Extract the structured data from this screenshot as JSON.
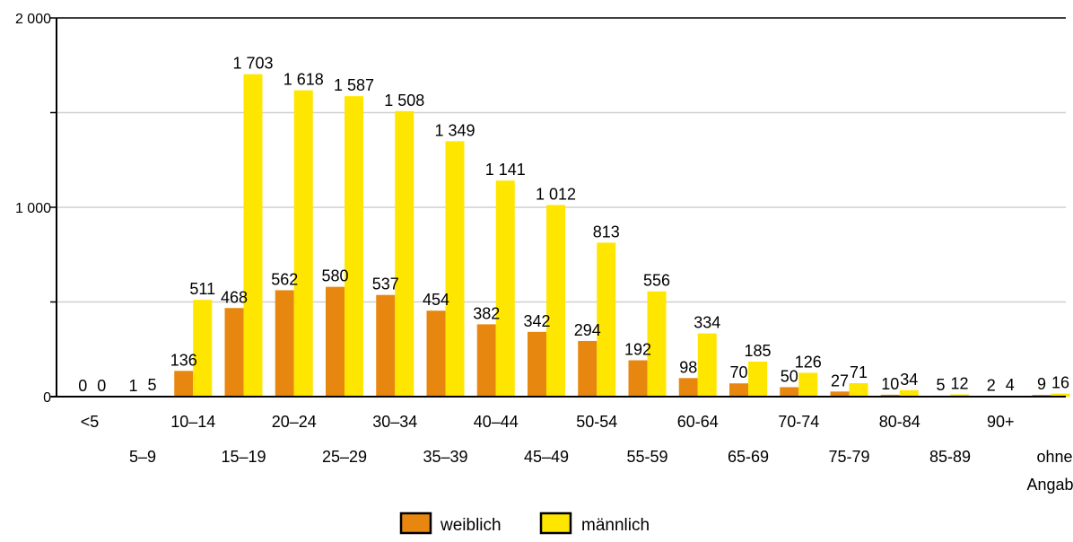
{
  "chart_data": {
    "type": "bar",
    "categories": [
      "<5",
      "5–9",
      "10–14",
      "15–19",
      "20–24",
      "25–29",
      "30–34",
      "35–39",
      "40–44",
      "45–49",
      "50-54",
      "55-59",
      "60-64",
      "65-69",
      "70-74",
      "75-79",
      "80-84",
      "85-89",
      "90+",
      "ohne Angabe"
    ],
    "category_display": [
      {
        "lines": [
          "<5"
        ],
        "row": 0
      },
      {
        "lines": [
          "5–9"
        ],
        "row": 1
      },
      {
        "lines": [
          "10–14"
        ],
        "row": 0
      },
      {
        "lines": [
          "15–19"
        ],
        "row": 1
      },
      {
        "lines": [
          "20–24"
        ],
        "row": 0
      },
      {
        "lines": [
          "25–29"
        ],
        "row": 1
      },
      {
        "lines": [
          "30–34"
        ],
        "row": 0
      },
      {
        "lines": [
          "35–39"
        ],
        "row": 1
      },
      {
        "lines": [
          "40–44"
        ],
        "row": 0
      },
      {
        "lines": [
          "45–49"
        ],
        "row": 1
      },
      {
        "lines": [
          "50-54"
        ],
        "row": 0
      },
      {
        "lines": [
          "55-59"
        ],
        "row": 1
      },
      {
        "lines": [
          "60-64"
        ],
        "row": 0
      },
      {
        "lines": [
          "65-69"
        ],
        "row": 1
      },
      {
        "lines": [
          "70-74"
        ],
        "row": 0
      },
      {
        "lines": [
          "75-79"
        ],
        "row": 1
      },
      {
        "lines": [
          "80-84"
        ],
        "row": 0
      },
      {
        "lines": [
          "85-89"
        ],
        "row": 1
      },
      {
        "lines": [
          "90+"
        ],
        "row": 0
      },
      {
        "lines": [
          "ohne",
          "Angabe"
        ],
        "row": 1
      }
    ],
    "series": [
      {
        "name": "weiblich",
        "color": "#E8870F",
        "values": [
          0,
          1,
          136,
          468,
          562,
          580,
          537,
          454,
          382,
          342,
          294,
          192,
          98,
          70,
          50,
          27,
          10,
          5,
          2,
          9
        ]
      },
      {
        "name": "männlich",
        "color": "#FFE600",
        "values": [
          0,
          5,
          511,
          1703,
          1618,
          1587,
          1508,
          1349,
          1141,
          1012,
          813,
          556,
          334,
          185,
          126,
          71,
          34,
          12,
          4,
          16
        ]
      }
    ],
    "data_labels": {
      "weiblich": [
        "0",
        "1",
        "136",
        "468",
        "562",
        "580",
        "537",
        "454",
        "382",
        "342",
        "294",
        "192",
        "98",
        "70",
        "50",
        "27",
        "10",
        "5",
        "2",
        "9"
      ],
      "männlich": [
        "0",
        "5",
        "511",
        "1 703",
        "1 618",
        "1 587",
        "1 508",
        "1 349",
        "1 141",
        "1 012",
        "813",
        "556",
        "334",
        "185",
        "126",
        "71",
        "34",
        "12",
        "4",
        "16"
      ]
    },
    "yticks": [
      0,
      500,
      1000,
      1500,
      2000
    ],
    "ytick_labels": [
      "0",
      "",
      "1 000",
      "",
      "2 000"
    ],
    "ylim": [
      0,
      2000
    ],
    "grid": true,
    "legend_position": "bottom-center",
    "title": "",
    "xlabel": "",
    "ylabel": ""
  }
}
